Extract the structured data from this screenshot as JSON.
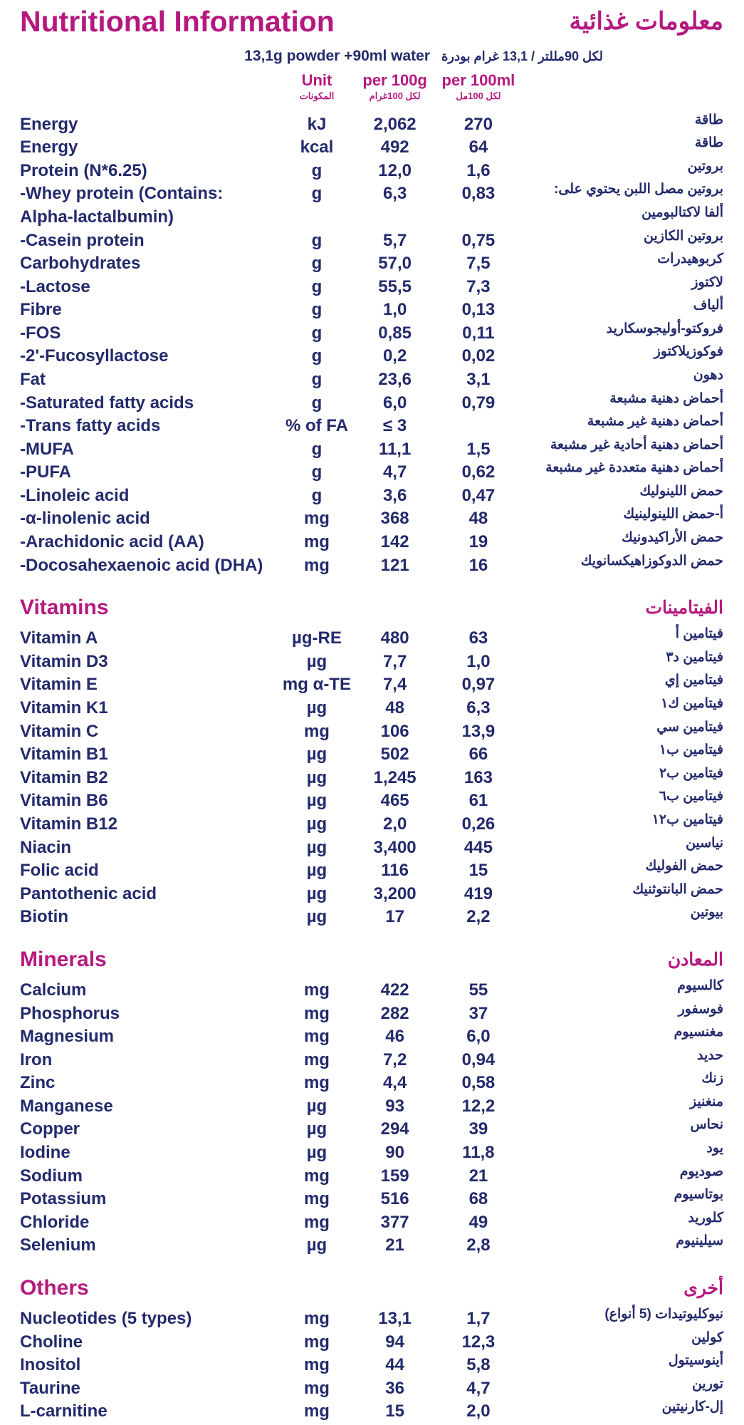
{
  "header": {
    "title_en": "Nutritional Information",
    "title_ar": "معلومات غذائية",
    "serving_en": "13,1g powder +90ml water",
    "serving_ar": "لكل 90مللتر / 13,1 غرام بودرة"
  },
  "columns": {
    "unit_en": "Unit",
    "unit_ar": "المكونات",
    "per100g_en": "per 100g",
    "per100g_ar": "لكل 100غرام",
    "per100ml_en": "per 100ml",
    "per100ml_ar": "لكل 100مل"
  },
  "sections": [
    {
      "rows": [
        {
          "en": "Energy",
          "unit": "kJ",
          "per100g": "2,062",
          "per100ml": "270",
          "ar": "طاقة"
        },
        {
          "en": "Energy",
          "unit": "kcal",
          "per100g": "492",
          "per100ml": "64",
          "ar": "طاقة"
        },
        {
          "en": "Protein (N*6.25)",
          "unit": "g",
          "per100g": "12,0",
          "per100ml": "1,6",
          "ar": "بروتين"
        },
        {
          "en": "-Whey protein (Contains:",
          "unit": "g",
          "per100g": "6,3",
          "per100ml": "0,83",
          "ar": "بروتين مصل اللبن يحتوي على:"
        },
        {
          "en": "Alpha-lactalbumin)",
          "ar": "ألفا لاكتالبومين"
        },
        {
          "en": "-Casein protein",
          "unit": "g",
          "per100g": "5,7",
          "per100ml": "0,75",
          "ar": "بروتين الكازين"
        },
        {
          "en": "Carbohydrates",
          "unit": "g",
          "per100g": "57,0",
          "per100ml": "7,5",
          "ar": "كربوهيدرات"
        },
        {
          "en": "-Lactose",
          "unit": "g",
          "per100g": "55,5",
          "per100ml": "7,3",
          "ar": "لاكتوز"
        },
        {
          "en": "Fibre",
          "unit": "g",
          "per100g": "1,0",
          "per100ml": "0,13",
          "ar": "ألياف"
        },
        {
          "en": "-FOS",
          "unit": "g",
          "per100g": "0,85",
          "per100ml": "0,11",
          "ar": "فروكتو-أوليجوسكاريد"
        },
        {
          "en": "-2'-Fucosyllactose",
          "unit": "g",
          "per100g": "0,2",
          "per100ml": "0,02",
          "ar": "فوكوزيلاكتوز"
        },
        {
          "en": "Fat",
          "unit": "g",
          "per100g": "23,6",
          "per100ml": "3,1",
          "ar": "دهون"
        },
        {
          "en": "-Saturated fatty acids",
          "unit": "g",
          "per100g": "6,0",
          "per100ml": "0,79",
          "ar": "أحماض دهنية مشبعة"
        },
        {
          "en": "-Trans fatty acids",
          "unit": "% of FA",
          "per100g": "≤ 3",
          "ar": "أحماض دهنية غير مشبعة"
        },
        {
          "en": "-MUFA",
          "unit": "g",
          "per100g": "11,1",
          "per100ml": "1,5",
          "ar": "أحماض دهنية أحادية غير مشبعة"
        },
        {
          "en": "-PUFA",
          "unit": "g",
          "per100g": "4,7",
          "per100ml": "0,62",
          "ar": "أحماض دهنية متعددة غير مشبعة"
        },
        {
          "en": "-Linoleic acid",
          "unit": "g",
          "per100g": "3,6",
          "per100ml": "0,47",
          "ar": "حمض اللينوليك"
        },
        {
          "en": "-α-linolenic acid",
          "unit": "mg",
          "per100g": "368",
          "per100ml": "48",
          "ar": "أ-حمض اللينولينيك"
        },
        {
          "en": "-Arachidonic acid (AA)",
          "unit": "mg",
          "per100g": "142",
          "per100ml": "19",
          "ar": "حمض الأراكيدونيك"
        },
        {
          "en": "-Docosahexaenoic acid (DHA)",
          "unit": "mg",
          "per100g": "121",
          "per100ml": "16",
          "ar": "حمض الدوكوزاهيكسانويك"
        }
      ]
    },
    {
      "heading_en": "Vitamins",
      "heading_ar": "الفيتامينات",
      "rows": [
        {
          "en": "Vitamin A",
          "unit": "µg-RE",
          "per100g": "480",
          "per100ml": "63",
          "ar": "فيتامين أ"
        },
        {
          "en": "Vitamin D3",
          "unit": "µg",
          "per100g": "7,7",
          "per100ml": "1,0",
          "ar": "فيتامين د٣"
        },
        {
          "en": "Vitamin E",
          "unit": "mg α-TE",
          "per100g": "7,4",
          "per100ml": "0,97",
          "ar": "فيتامين إي"
        },
        {
          "en": "Vitamin K1",
          "unit": "µg",
          "per100g": "48",
          "per100ml": "6,3",
          "ar": "فيتامين ك١"
        },
        {
          "en": "Vitamin C",
          "unit": "mg",
          "per100g": "106",
          "per100ml": "13,9",
          "ar": "فيتامين سي"
        },
        {
          "en": "Vitamin B1",
          "unit": "µg",
          "per100g": "502",
          "per100ml": "66",
          "ar": "فيتامين ب١"
        },
        {
          "en": "Vitamin B2",
          "unit": "µg",
          "per100g": "1,245",
          "per100ml": "163",
          "ar": "فيتامين ب٢"
        },
        {
          "en": "Vitamin B6",
          "unit": "µg",
          "per100g": "465",
          "per100ml": "61",
          "ar": "فيتامين ب٦"
        },
        {
          "en": "Vitamin B12",
          "unit": "µg",
          "per100g": "2,0",
          "per100ml": "0,26",
          "ar": "فيتامين ب١٢"
        },
        {
          "en": "Niacin",
          "unit": "µg",
          "per100g": "3,400",
          "per100ml": "445",
          "ar": "نياسين"
        },
        {
          "en": "Folic acid",
          "unit": "µg",
          "per100g": "116",
          "per100ml": "15",
          "ar": "حمض الفوليك"
        },
        {
          "en": "Pantothenic acid",
          "unit": "µg",
          "per100g": "3,200",
          "per100ml": "419",
          "ar": "حمض البانتوثنيك"
        },
        {
          "en": "Biotin",
          "unit": "µg",
          "per100g": "17",
          "per100ml": "2,2",
          "ar": "بيوتين"
        }
      ]
    },
    {
      "heading_en": "Minerals",
      "heading_ar": "المعادن",
      "rows": [
        {
          "en": "Calcium",
          "unit": "mg",
          "per100g": "422",
          "per100ml": "55",
          "ar": "كالسيوم"
        },
        {
          "en": "Phosphorus",
          "unit": "mg",
          "per100g": "282",
          "per100ml": "37",
          "ar": "فوسفور"
        },
        {
          "en": "Magnesium",
          "unit": "mg",
          "per100g": "46",
          "per100ml": "6,0",
          "ar": "مغنسيوم"
        },
        {
          "en": "Iron",
          "unit": "mg",
          "per100g": "7,2",
          "per100ml": "0,94",
          "ar": "حديد"
        },
        {
          "en": "Zinc",
          "unit": "mg",
          "per100g": "4,4",
          "per100ml": "0,58",
          "ar": "زنك"
        },
        {
          "en": "Manganese",
          "unit": "µg",
          "per100g": "93",
          "per100ml": "12,2",
          "ar": "منغنيز"
        },
        {
          "en": "Copper",
          "unit": "µg",
          "per100g": "294",
          "per100ml": "39",
          "ar": "نحاس"
        },
        {
          "en": "Iodine",
          "unit": "µg",
          "per100g": "90",
          "per100ml": "11,8",
          "ar": "يود"
        },
        {
          "en": "Sodium",
          "unit": "mg",
          "per100g": "159",
          "per100ml": "21",
          "ar": "صوديوم"
        },
        {
          "en": "Potassium",
          "unit": "mg",
          "per100g": "516",
          "per100ml": "68",
          "ar": "بوتاسيوم"
        },
        {
          "en": "Chloride",
          "unit": "mg",
          "per100g": "377",
          "per100ml": "49",
          "ar": "كلوريد"
        },
        {
          "en": "Selenium",
          "unit": "µg",
          "per100g": "21",
          "per100ml": "2,8",
          "ar": "سيلينيوم"
        }
      ]
    },
    {
      "heading_en": "Others",
      "heading_ar": "أخرى",
      "rows": [
        {
          "en": "Nucleotides (5 types)",
          "unit": "mg",
          "per100g": "13,1",
          "per100ml": "1,7",
          "ar": "نيوكليوتيدات (5 أنواع)"
        },
        {
          "en": "Choline",
          "unit": "mg",
          "per100g": "94",
          "per100ml": "12,3",
          "ar": "كولين"
        },
        {
          "en": "Inositol",
          "unit": "mg",
          "per100g": "44",
          "per100ml": "5,8",
          "ar": "أينوسيتول"
        },
        {
          "en": "Taurine",
          "unit": "mg",
          "per100g": "36",
          "per100ml": "4,7",
          "ar": "تورين"
        },
        {
          "en": "L-carnitine",
          "unit": "mg",
          "per100g": "15",
          "per100ml": "2,0",
          "ar": "إل-كارنيتين"
        }
      ]
    }
  ]
}
